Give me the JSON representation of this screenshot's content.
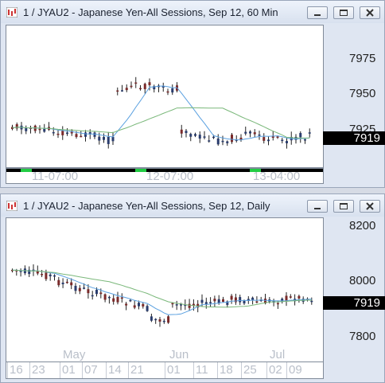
{
  "window1": {
    "title": "1 / JYAU2 - Japanese Yen-All Sessions, Sep 12, 60 Min",
    "y_labels": [
      "7975",
      "7950",
      "7925"
    ],
    "last_price": "7919",
    "x_labels": [
      "11-07:00",
      "12-07:00",
      "13-04:00"
    ]
  },
  "window2": {
    "title": "1 / JYAU2 - Japanese Yen-All Sessions, Sep 12, Daily",
    "y_labels": [
      "8200",
      "8000",
      "7800"
    ],
    "last_price": "7919",
    "month_labels": [
      "May",
      "Jun",
      "Jul"
    ],
    "day_labels": [
      "16",
      "23",
      "01",
      "07",
      "14",
      "21",
      "01",
      "11",
      "18",
      "25",
      "02",
      "09"
    ]
  },
  "buttons": {
    "minimize": "minimize",
    "restore": "restore",
    "close": "close"
  },
  "colors": {
    "up": "#2a3d6e",
    "down": "#7a2a2a",
    "ma_fast": "#5aa0e0",
    "ma_slow": "#7ab87a",
    "session_marker": "#22cc44"
  }
}
